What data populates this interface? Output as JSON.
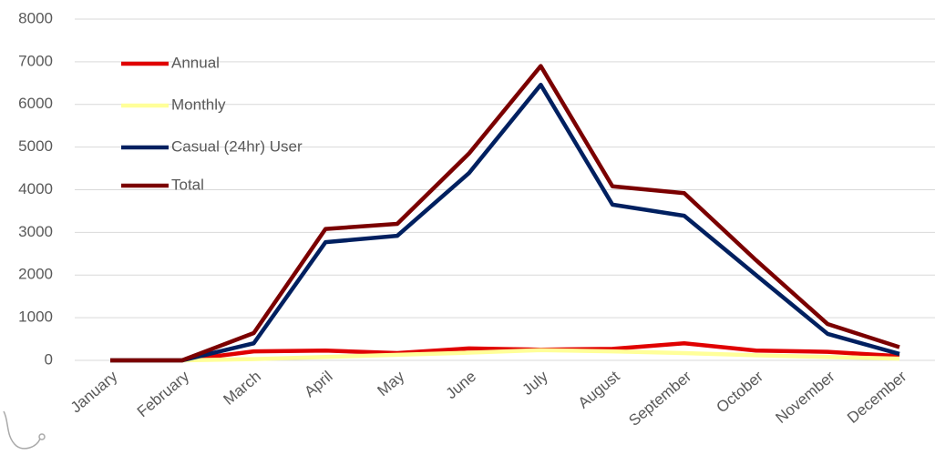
{
  "chart_data": {
    "type": "line",
    "categories": [
      "January",
      "February",
      "March",
      "April",
      "May",
      "June",
      "July",
      "August",
      "September",
      "October",
      "November",
      "December"
    ],
    "series": [
      {
        "name": "Annual",
        "color": "#e00000",
        "values": [
          0,
          0,
          210,
          230,
          170,
          280,
          250,
          270,
          400,
          230,
          200,
          100
        ]
      },
      {
        "name": "Monthly",
        "color": "#ffff99",
        "values": [
          0,
          0,
          30,
          80,
          130,
          180,
          240,
          210,
          170,
          120,
          80,
          40
        ]
      },
      {
        "name": "Casual (24hr) User",
        "color": "#002060",
        "values": [
          0,
          0,
          400,
          2770,
          2920,
          4390,
          6460,
          3650,
          3390,
          2000,
          620,
          150
        ]
      },
      {
        "name": "Total",
        "color": "#7b0000",
        "values": [
          0,
          0,
          640,
          3080,
          3200,
          4850,
          6900,
          4080,
          3920,
          2350,
          850,
          310
        ]
      }
    ],
    "ylim": [
      0,
      8000
    ],
    "yticks": [
      0,
      1000,
      2000,
      3000,
      4000,
      5000,
      6000,
      7000,
      8000
    ],
    "grid": true,
    "legend": "upper left"
  }
}
